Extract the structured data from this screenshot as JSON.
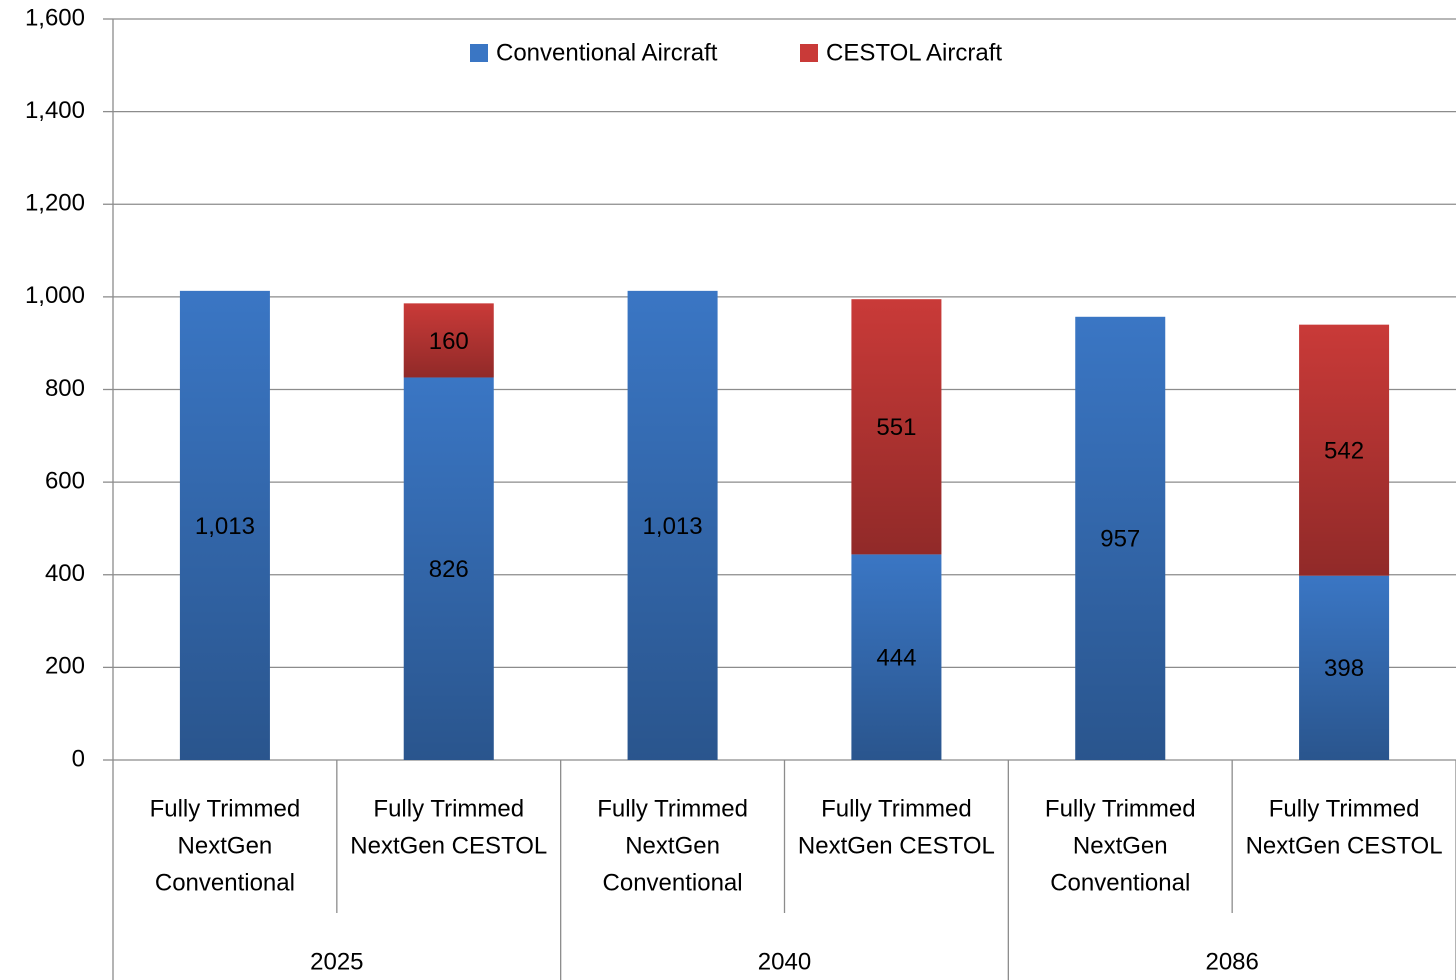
{
  "chart_data": {
    "type": "stacked_bar",
    "categories": [
      [
        "Fully Trimmed",
        "NextGen",
        "Conventional"
      ],
      [
        "Fully Trimmed",
        "NextGen CESTOL"
      ],
      [
        "Fully Trimmed",
        "NextGen",
        "Conventional"
      ],
      [
        "Fully Trimmed",
        "NextGen CESTOL"
      ],
      [
        "Fully Trimmed",
        "NextGen",
        "Conventional"
      ],
      [
        "Fully Trimmed",
        "NextGen CESTOL"
      ]
    ],
    "groups": [
      "2025",
      "2040",
      "2086"
    ],
    "series": [
      {
        "name": "Conventional Aircraft",
        "color": "#3a76c4",
        "values": [
          1013,
          826,
          1013,
          444,
          957,
          398
        ],
        "value_labels": [
          "1,013",
          "826",
          "1,013",
          "444",
          "957",
          "398"
        ]
      },
      {
        "name": "CESTOL Aircraft",
        "color": "#c93a38",
        "values": [
          null,
          160,
          null,
          551,
          null,
          542
        ]
      }
    ],
    "ylim": [
      0,
      1600
    ],
    "yticks": [
      0,
      200,
      400,
      600,
      800,
      {
        "value": 1000,
        "label": "1,000"
      },
      {
        "value": 1200,
        "label": "1,200"
      },
      {
        "value": 1400,
        "label": "1,400"
      },
      {
        "value": 1600,
        "label": "1,600"
      }
    ],
    "grid": true,
    "legend": "top"
  }
}
